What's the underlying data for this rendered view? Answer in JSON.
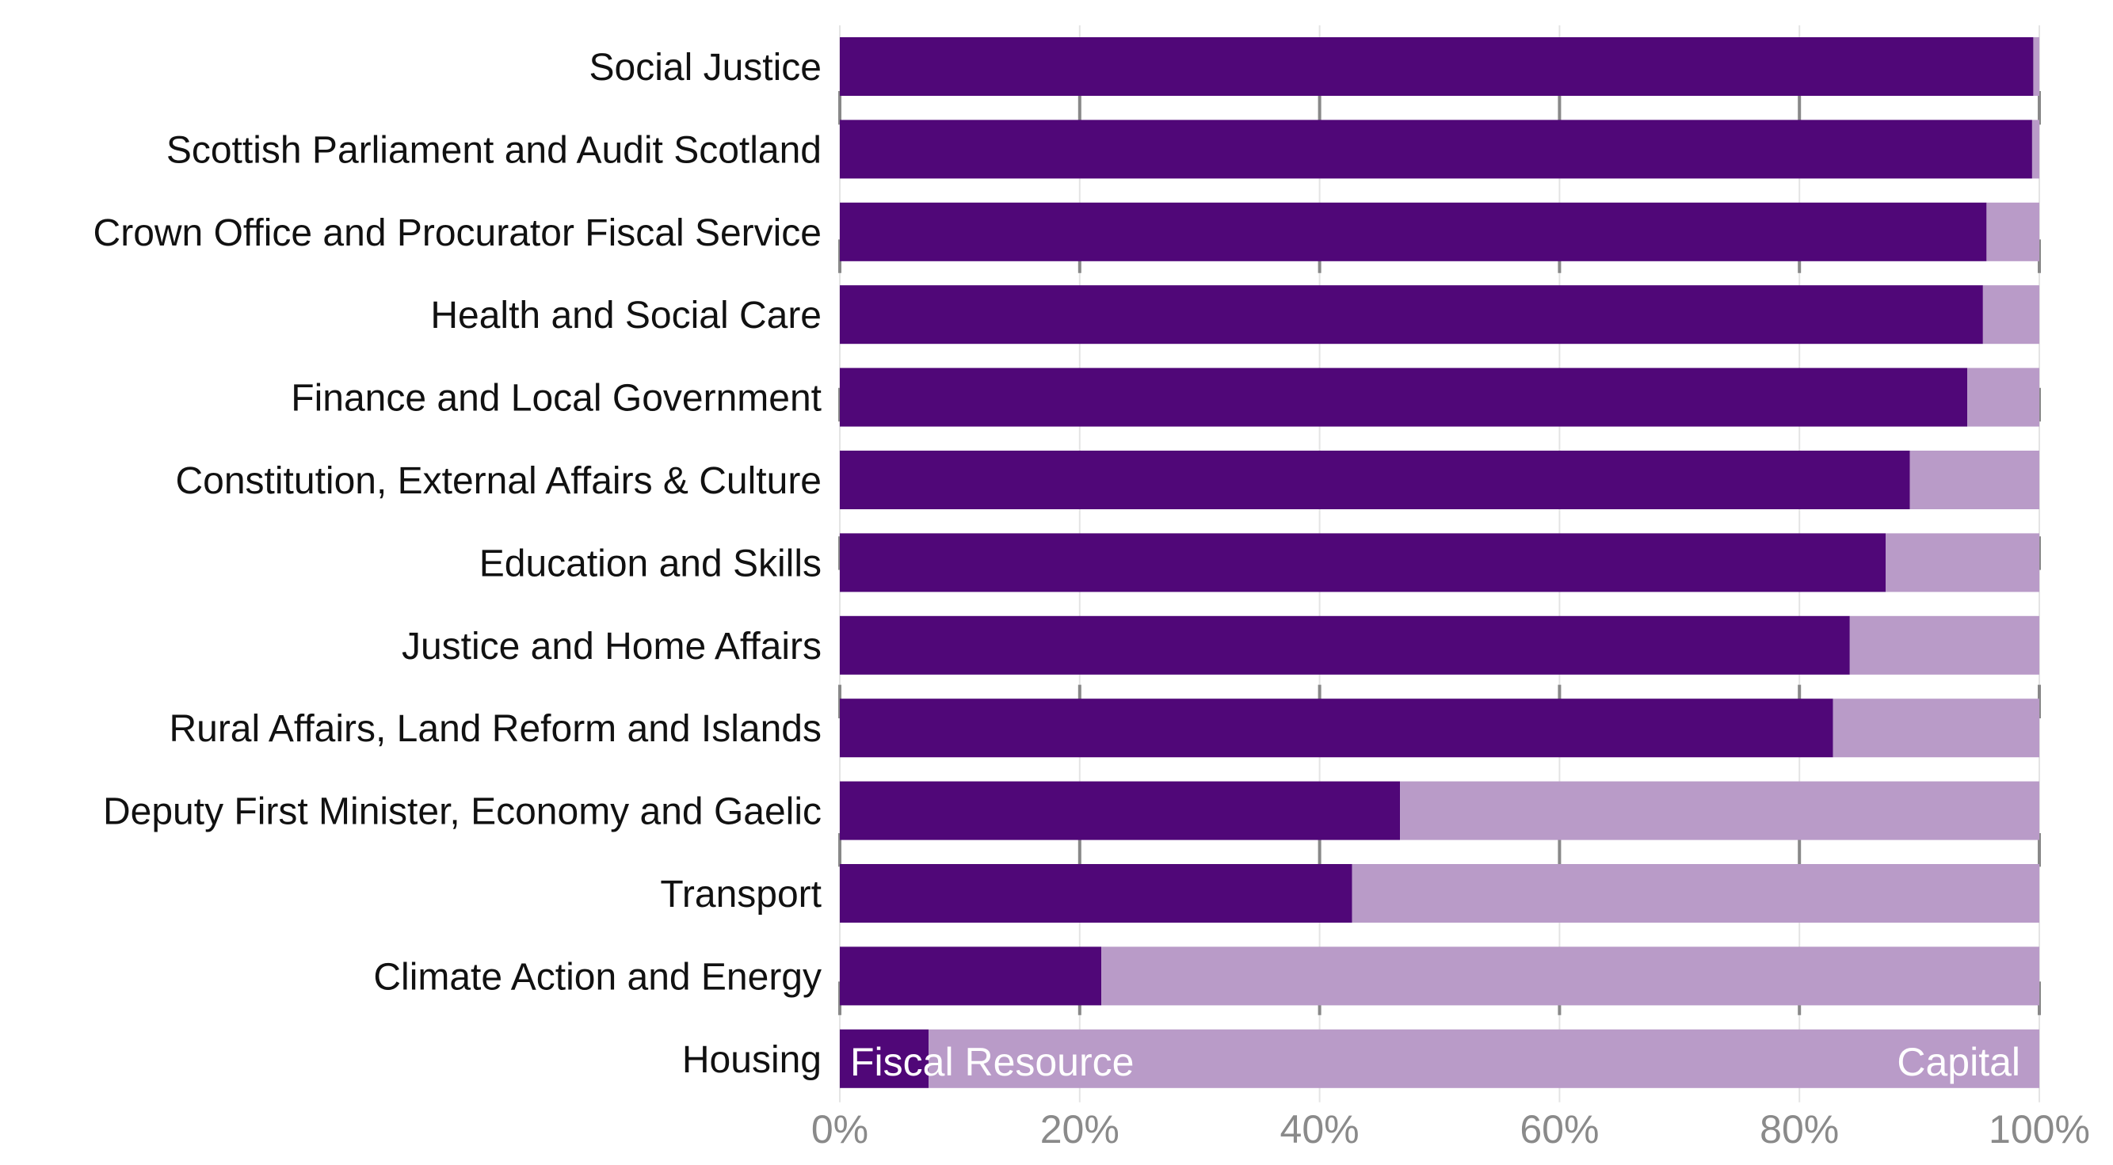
{
  "chart_data": {
    "type": "bar",
    "orientation": "horizontal",
    "stacked": true,
    "categories": [
      "Social Justice",
      "Scottish Parliament and Audit Scotland",
      "Crown Office and Procurator Fiscal Service",
      "Health and Social Care",
      "Finance and Local Government",
      "Constitution, External Affairs & Culture",
      "Education and Skills",
      "Justice and Home Affairs",
      "Rural Affairs, Land Reform and Islands",
      "Deputy First Minister, Economy and Gaelic",
      "Transport",
      "Climate Action and Energy",
      "Housing"
    ],
    "series": [
      {
        "name": "Fiscal Resource",
        "color": "#500778",
        "values": [
          99.5,
          99.4,
          95.6,
          95.3,
          94.0,
          89.2,
          87.2,
          84.2,
          82.8,
          46.7,
          42.7,
          21.8,
          7.4
        ]
      },
      {
        "name": "Capital",
        "color": "#B99BC8",
        "values": [
          0.5,
          0.6,
          4.4,
          4.7,
          6.0,
          10.8,
          12.8,
          15.8,
          17.2,
          53.3,
          57.3,
          78.2,
          92.6
        ]
      }
    ],
    "xlim": [
      0,
      100
    ],
    "xticks": [
      "0%",
      "20%",
      "40%",
      "60%",
      "80%",
      "100%"
    ],
    "xtick_values": [
      0,
      20,
      40,
      60,
      80,
      100
    ],
    "grid": true,
    "legend": "inline labels inside bottom bar",
    "title": "",
    "xlabel": "",
    "ylabel": ""
  }
}
